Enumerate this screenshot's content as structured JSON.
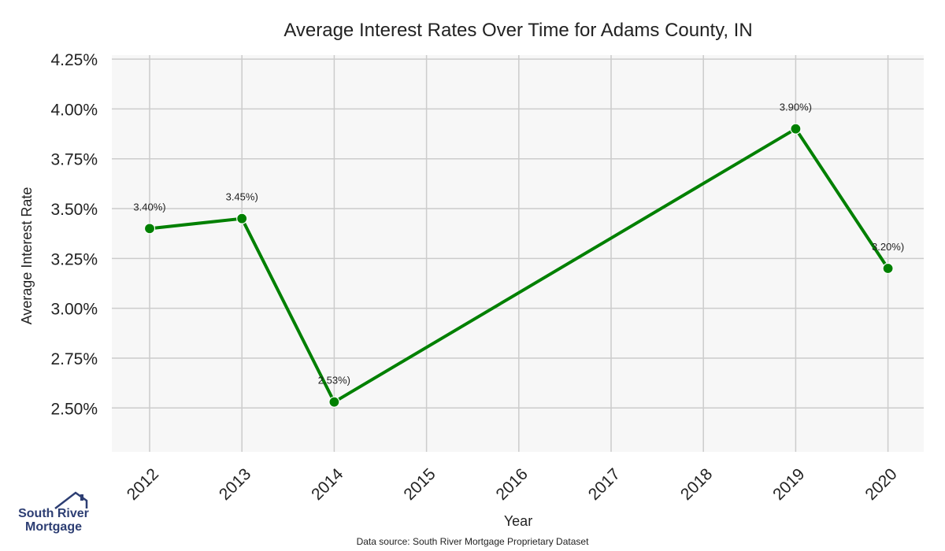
{
  "chart_data": {
    "type": "line",
    "title": "Average Interest Rates Over Time for Adams County, IN",
    "xlabel": "Year",
    "ylabel": "Average Interest Rate",
    "x_categories": [
      "2012",
      "2013",
      "2014",
      "2015",
      "2016",
      "2017",
      "2018",
      "2019",
      "2020"
    ],
    "y_ticks": [
      2.5,
      2.75,
      3.0,
      3.25,
      3.5,
      3.75,
      4.0,
      4.25
    ],
    "y_tick_labels": [
      "2.50%",
      "2.75%",
      "3.00%",
      "3.25%",
      "3.50%",
      "3.75%",
      "4.00%",
      "4.25%"
    ],
    "ylim": [
      2.28,
      4.27
    ],
    "grid": true,
    "series": [
      {
        "color": "#008000",
        "points": [
          {
            "x": "2012",
            "y": 3.4,
            "label": "3.40%)"
          },
          {
            "x": "2013",
            "y": 3.45,
            "label": "3.45%)"
          },
          {
            "x": "2014",
            "y": 2.53,
            "label": "2.53%)"
          },
          {
            "x": "2019",
            "y": 3.9,
            "label": "3.90%)"
          },
          {
            "x": "2020",
            "y": 3.2,
            "label": "3.20%)"
          }
        ]
      }
    ],
    "plot_background": "#f7f7f7",
    "grid_color": "#cccccc"
  },
  "footer": {
    "source": "Data source: South River Mortgage Proprietary Dataset"
  },
  "logo": {
    "line1": "South River",
    "line2": "Mortgage",
    "color": "#2d3e73"
  }
}
